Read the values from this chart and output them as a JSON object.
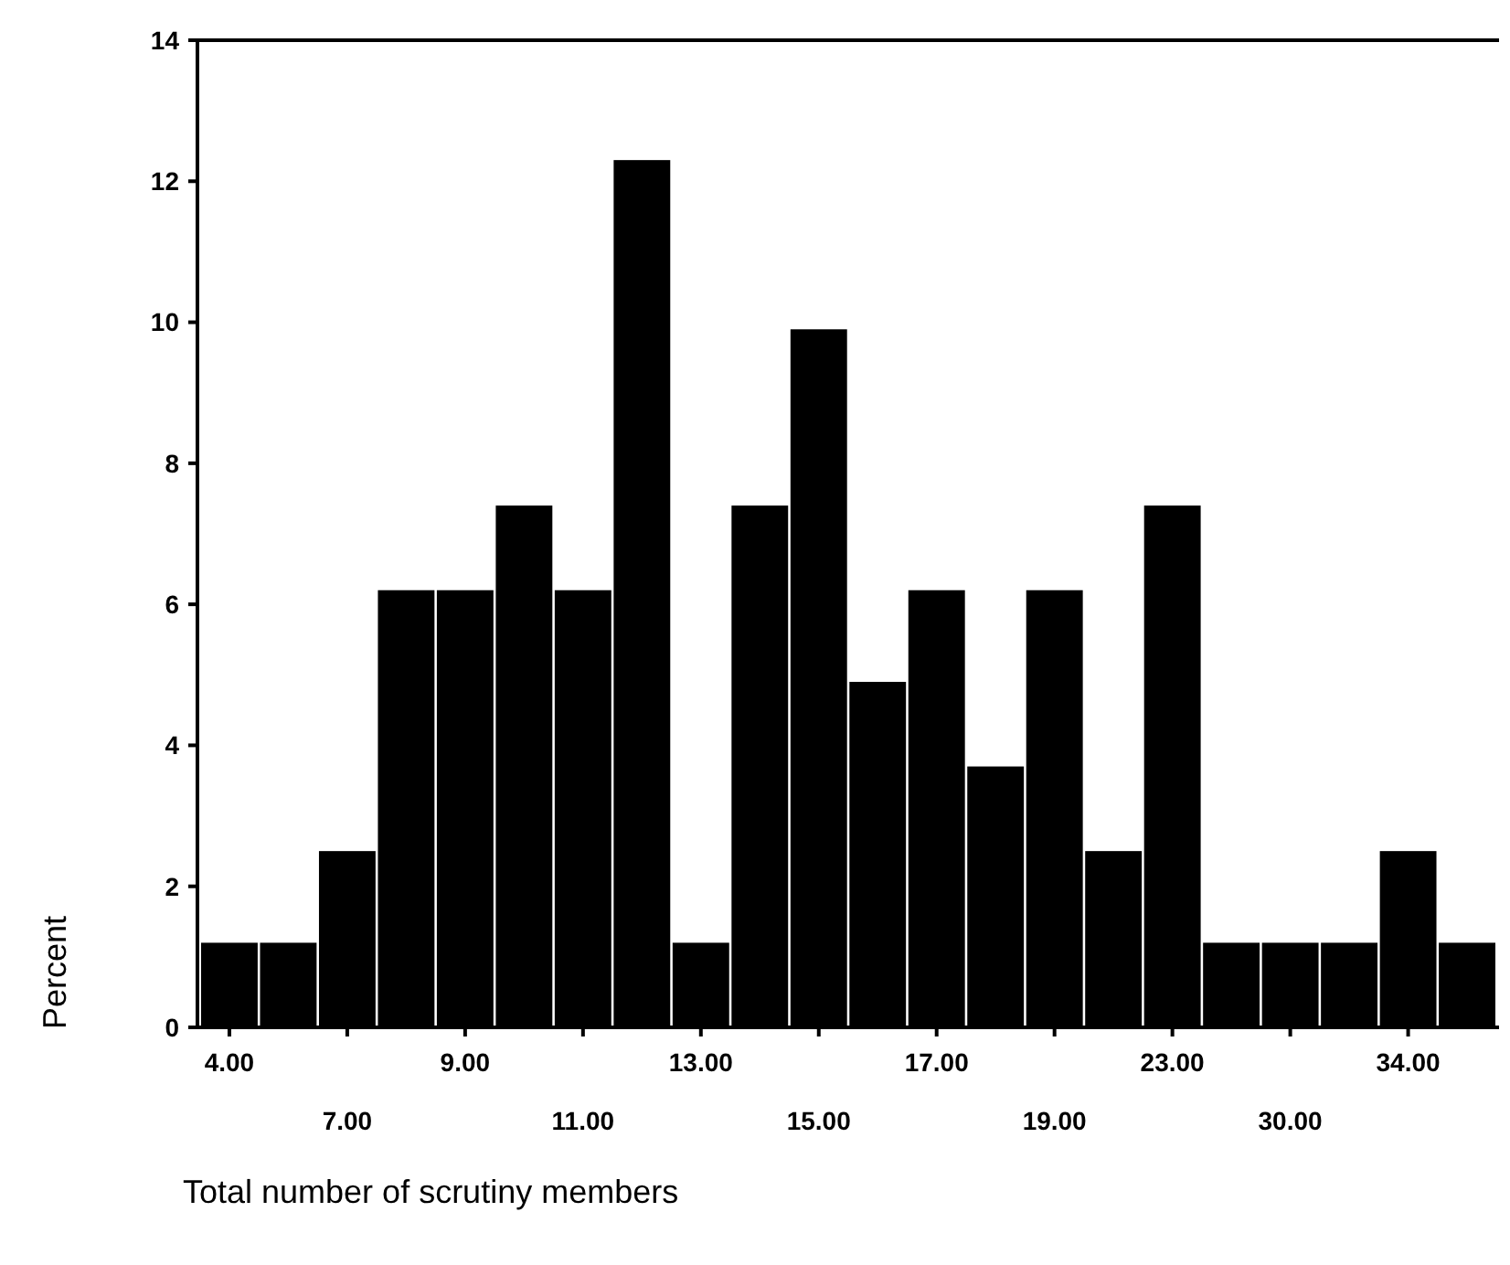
{
  "chart_data": {
    "type": "bar",
    "xlabel": "Total number of scrutiny members",
    "ylabel": "Percent",
    "categories": [
      "4.00",
      null,
      "7.00",
      null,
      "9.00",
      null,
      "11.00",
      null,
      "13.00",
      null,
      "15.00",
      null,
      "17.00",
      null,
      "19.00",
      null,
      "23.00",
      null,
      "30.00",
      null,
      "34.00",
      null
    ],
    "values": [
      1.2,
      1.2,
      2.5,
      6.2,
      6.2,
      7.4,
      6.2,
      12.3,
      1.2,
      7.4,
      9.9,
      4.9,
      6.2,
      3.7,
      6.2,
      2.5,
      7.4,
      1.2,
      1.2,
      1.2,
      2.5,
      1.2
    ],
    "color": "#000000",
    "ylim": [
      0,
      14
    ],
    "yticks": [
      0,
      2,
      4,
      6,
      8,
      10,
      12,
      14
    ],
    "grid": false
  }
}
